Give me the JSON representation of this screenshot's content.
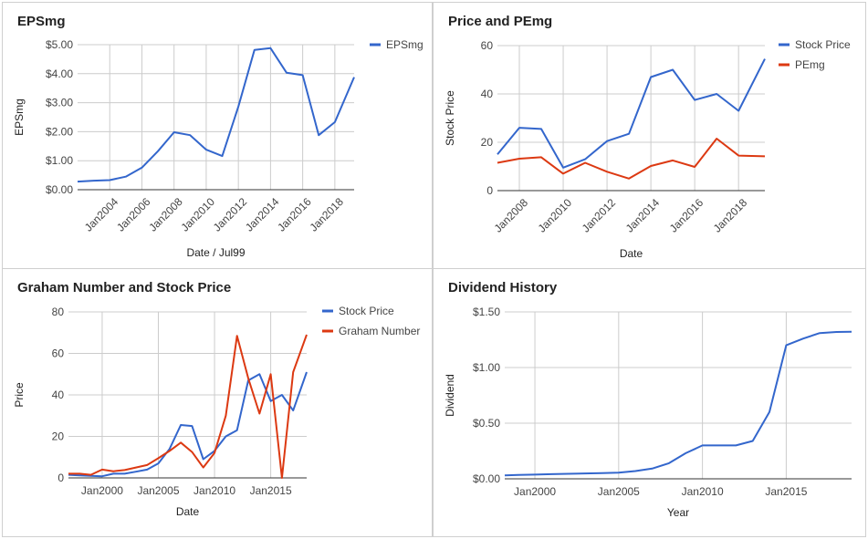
{
  "colors": {
    "blue": "#3366cc",
    "red": "#dc3912",
    "grid": "#cccccc",
    "axis": "#333333",
    "text": "#444444"
  },
  "chart_data": [
    {
      "id": "eps",
      "type": "line",
      "title": "EPSmg",
      "xlabel": "Date / Jul99",
      "ylabel": "EPSmg",
      "ylim": [
        0,
        5
      ],
      "yticks": [
        0,
        1,
        2,
        3,
        4,
        5
      ],
      "ytick_labels": [
        "$0.00",
        "$1.00",
        "$2.00",
        "$3.00",
        "$4.00",
        "$5.00"
      ],
      "xlim": [
        2002,
        2019.2
      ],
      "xticks": [
        2004,
        2006,
        2008,
        2010,
        2012,
        2014,
        2016,
        2018
      ],
      "xtick_labels": [
        "Jan2004",
        "Jan2006",
        "Jan2008",
        "Jan2010",
        "Jan2012",
        "Jan2014",
        "Jan2016",
        "Jan2018"
      ],
      "xtick_rotate": true,
      "grid": true,
      "legend": "right",
      "series": [
        {
          "name": "EPSmg",
          "color": "#3366cc",
          "x": [
            2002,
            2003,
            2004,
            2005,
            2006,
            2007,
            2008,
            2009,
            2010,
            2011,
            2012,
            2013,
            2014,
            2015,
            2016,
            2017,
            2018,
            2019.2
          ],
          "y": [
            0.28,
            0.31,
            0.33,
            0.45,
            0.76,
            1.33,
            1.98,
            1.88,
            1.38,
            1.16,
            2.87,
            4.82,
            4.88,
            4.03,
            3.95,
            1.88,
            2.33,
            3.88
          ]
        }
      ]
    },
    {
      "id": "pe",
      "type": "line",
      "title": "Price and PEmg",
      "xlabel": "Date",
      "ylabel": "Stock Price",
      "ylim": [
        0,
        60
      ],
      "yticks": [
        0,
        20,
        40,
        60
      ],
      "ytick_labels": [
        "0",
        "20",
        "40",
        "60"
      ],
      "xlim": [
        2007,
        2019.2
      ],
      "xticks": [
        2008,
        2010,
        2012,
        2014,
        2016,
        2018
      ],
      "xtick_labels": [
        "Jan2008",
        "Jan2010",
        "Jan2012",
        "Jan2014",
        "Jan2016",
        "Jan2018"
      ],
      "xtick_rotate": true,
      "grid": true,
      "legend": "right",
      "series": [
        {
          "name": "Stock Price",
          "color": "#3366cc",
          "x": [
            2007,
            2008,
            2009,
            2010,
            2011,
            2012,
            2013,
            2014,
            2015,
            2016,
            2017,
            2018,
            2019.2
          ],
          "y": [
            15,
            26,
            25.5,
            9.5,
            13,
            20.5,
            23.5,
            47,
            50,
            37.5,
            40,
            33,
            54.5
          ]
        },
        {
          "name": "PEmg",
          "color": "#dc3912",
          "x": [
            2007,
            2008,
            2009,
            2010,
            2011,
            2012,
            2013,
            2014,
            2015,
            2016,
            2017,
            2018,
            2019.2
          ],
          "y": [
            11.5,
            13.2,
            13.8,
            7,
            11.5,
            7.8,
            5,
            10.2,
            12.5,
            9.8,
            21.5,
            14.5,
            14.2
          ]
        }
      ]
    },
    {
      "id": "graham",
      "type": "line",
      "title": "Graham Number and Stock Price",
      "xlabel": "Date",
      "ylabel": "Price",
      "ylim": [
        0,
        80
      ],
      "yticks": [
        0,
        20,
        40,
        60,
        80
      ],
      "ytick_labels": [
        "0",
        "20",
        "40",
        "60",
        "80"
      ],
      "xlim": [
        1997,
        2018.2
      ],
      "xticks": [
        2000,
        2005,
        2010,
        2015
      ],
      "xtick_labels": [
        "Jan2000",
        "Jan2005",
        "Jan2010",
        "Jan2015"
      ],
      "xtick_rotate": false,
      "grid": true,
      "legend": "right",
      "series": [
        {
          "name": "Stock Price",
          "color": "#3366cc",
          "x": [
            1997,
            1998,
            1999,
            2000,
            2001,
            2002,
            2003,
            2004,
            2005,
            2006,
            2007,
            2008,
            2009,
            2010,
            2011,
            2012,
            2013,
            2014,
            2015,
            2016,
            2017,
            2018.2
          ],
          "y": [
            1.5,
            1.2,
            1,
            0.8,
            2,
            2,
            3,
            4,
            7,
            14,
            25.5,
            25,
            9,
            13,
            20,
            23,
            47,
            50,
            37,
            40,
            32.5,
            51
          ]
        },
        {
          "name": "Graham Number",
          "color": "#dc3912",
          "x": [
            1997,
            1998,
            1999,
            2000,
            2001,
            2002,
            2003,
            2004,
            2005,
            2006,
            2007,
            2008,
            2009,
            2010,
            2011,
            2012,
            2013,
            2014,
            2015,
            2016,
            2017,
            2018.2
          ],
          "y": [
            2,
            2,
            1.5,
            4,
            3.2,
            3.8,
            5,
            6.2,
            9.5,
            13,
            17,
            12.5,
            5,
            12,
            30,
            68.5,
            48,
            31,
            50,
            0,
            51,
            69
          ]
        }
      ]
    },
    {
      "id": "dividend",
      "type": "line",
      "title": "Dividend History",
      "xlabel": "Year",
      "ylabel": "Dividend",
      "ylim": [
        0,
        1.5
      ],
      "yticks": [
        0,
        0.5,
        1,
        1.5
      ],
      "ytick_labels": [
        "$0.00",
        "$0.50",
        "$1.00",
        "$1.50"
      ],
      "xlim": [
        1998.2,
        2018.9
      ],
      "xticks": [
        2000,
        2005,
        2010,
        2015
      ],
      "xtick_labels": [
        "Jan2000",
        "Jan2005",
        "Jan2010",
        "Jan2015"
      ],
      "xtick_rotate": false,
      "grid": true,
      "legend": "none",
      "series": [
        {
          "name": "",
          "color": "#3366cc",
          "x": [
            1998.2,
            1999,
            2000,
            2001,
            2002,
            2003,
            2004,
            2005,
            2006,
            2007,
            2008,
            2009,
            2010,
            2011,
            2012,
            2013,
            2014,
            2015,
            2016,
            2017,
            2018,
            2018.9
          ],
          "y": [
            0.03,
            0.035,
            0.038,
            0.042,
            0.045,
            0.048,
            0.052,
            0.055,
            0.07,
            0.092,
            0.14,
            0.23,
            0.3,
            0.3,
            0.3,
            0.34,
            0.6,
            1.2,
            1.26,
            1.31,
            1.32,
            1.322
          ]
        }
      ]
    }
  ]
}
